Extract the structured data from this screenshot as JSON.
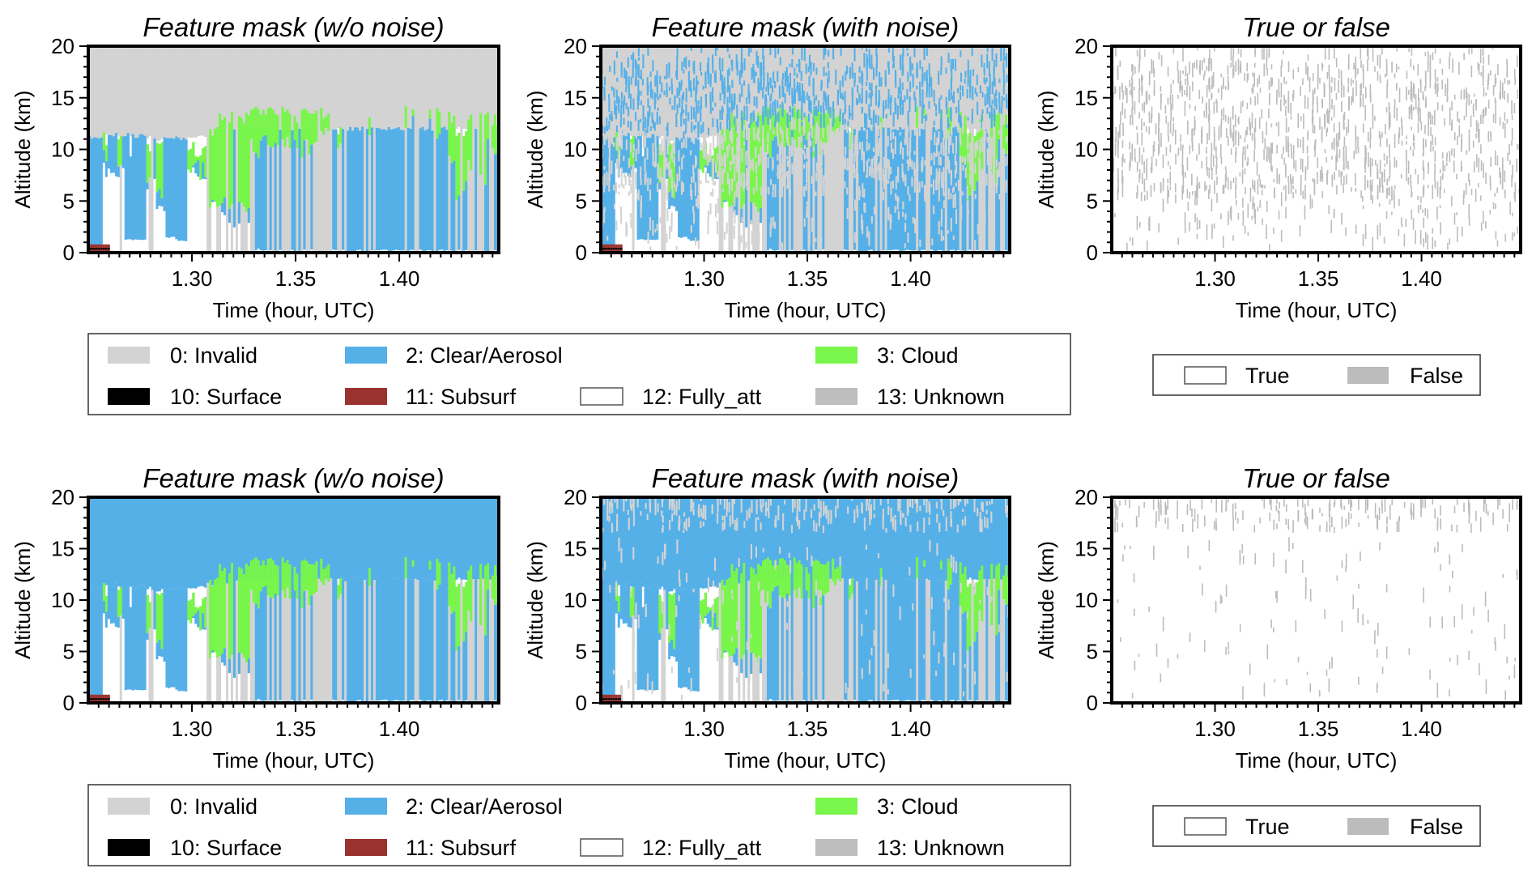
{
  "chart_data": {
    "type": "heatmap",
    "axes": {
      "xlabel": "Time (hour, UTC)",
      "ylabel": "Altitude (km)",
      "xlim": [
        1.25,
        1.448
      ],
      "ylim": [
        0,
        20
      ],
      "xticks": [
        1.3,
        1.35,
        1.4
      ],
      "xtick_labels": [
        "1.30",
        "1.35",
        "1.40"
      ],
      "yticks": [
        0,
        5,
        10,
        15,
        20
      ],
      "ytick_labels": [
        "0",
        "5",
        "10",
        "15",
        "20"
      ],
      "grid": false
    },
    "panels": [
      {
        "title": "Feature mask (w/o noise)",
        "row": 0,
        "col": 0,
        "kind": "mask",
        "above_valid_top": "invalid",
        "noise_fraction": 0
      },
      {
        "title": "Feature mask (with noise)",
        "row": 0,
        "col": 1,
        "kind": "mask_noise",
        "above_valid_top": "invalid",
        "noise_fraction": 0.35
      },
      {
        "title": "True or false",
        "row": 0,
        "col": 2,
        "kind": "truefalse",
        "false_fraction": 0.25
      },
      {
        "title": "Feature mask (w/o noise)",
        "row": 1,
        "col": 0,
        "kind": "mask",
        "above_valid_top": "clear",
        "noise_fraction": 0
      },
      {
        "title": "Feature mask (with noise)",
        "row": 1,
        "col": 1,
        "kind": "mask_noise",
        "above_valid_top": "clear",
        "noise_fraction": 0.08
      },
      {
        "title": "True or false",
        "row": 1,
        "col": 2,
        "kind": "truefalse",
        "false_fraction": 0.06
      }
    ],
    "profile_columns": [
      "time_hour",
      "valid_top_km",
      "cloud_top_km",
      "cloud_base_km",
      "fully_attenuated_top_km",
      "invalid_column_prob",
      "cloud_prob"
    ],
    "profile": [
      [
        1.25,
        11.2,
        0,
        0,
        0.4,
        0,
        0
      ],
      [
        1.255,
        11.2,
        0,
        0,
        0.5,
        0,
        0.1
      ],
      [
        1.26,
        11.3,
        11,
        9,
        8,
        0.1,
        0.6
      ],
      [
        1.265,
        11.4,
        11,
        8,
        7.5,
        0.2,
        0.6
      ],
      [
        1.27,
        11.4,
        10,
        9,
        1.2,
        0,
        0.3
      ],
      [
        1.275,
        11.3,
        10,
        9,
        1.2,
        0,
        0.3
      ],
      [
        1.28,
        11.1,
        10,
        7,
        6.5,
        0.1,
        0.6
      ],
      [
        1.285,
        11.0,
        10,
        6,
        4,
        0.1,
        0.7
      ],
      [
        1.29,
        11.0,
        0,
        0,
        1.5,
        0,
        0.1
      ],
      [
        1.295,
        11.1,
        10,
        9.5,
        1.2,
        0,
        0.2
      ],
      [
        1.3,
        11.2,
        10,
        8.5,
        8.2,
        0,
        0.8
      ],
      [
        1.305,
        11.3,
        10,
        8,
        7.5,
        0.1,
        0.8
      ],
      [
        1.31,
        11.5,
        12,
        5,
        4.5,
        0.2,
        0.8
      ],
      [
        1.315,
        11.6,
        13,
        5,
        4,
        0.3,
        0.7
      ],
      [
        1.32,
        11.8,
        13,
        4,
        3,
        0.3,
        0.8
      ],
      [
        1.325,
        12,
        13,
        4,
        3,
        0.4,
        0.6
      ],
      [
        1.33,
        12,
        14,
        10,
        0.3,
        0.4,
        0.6
      ],
      [
        1.335,
        12,
        14,
        11,
        0.2,
        0.6,
        0.9
      ],
      [
        1.34,
        12,
        14,
        11,
        0.2,
        0.6,
        0.9
      ],
      [
        1.345,
        12,
        14,
        11,
        0.2,
        0.7,
        0.8
      ],
      [
        1.35,
        12,
        13,
        11,
        0.2,
        0.7,
        0.7
      ],
      [
        1.355,
        12,
        14,
        10,
        0.2,
        0.75,
        0.9
      ],
      [
        1.36,
        12,
        14,
        11,
        0.2,
        0.8,
        0.9
      ],
      [
        1.365,
        12,
        13,
        11.5,
        0.2,
        0.7,
        0.7
      ],
      [
        1.37,
        12,
        12,
        11,
        0.2,
        0.3,
        0.4
      ],
      [
        1.375,
        12,
        0,
        0,
        0.2,
        0.1,
        0.1
      ],
      [
        1.38,
        12,
        14,
        12,
        0.2,
        0.05,
        0.3
      ],
      [
        1.385,
        12,
        13.5,
        12,
        0.2,
        0.1,
        0.4
      ],
      [
        1.39,
        12,
        12.5,
        12,
        0.2,
        0.15,
        0.3
      ],
      [
        1.395,
        12,
        0,
        0,
        0.2,
        0.05,
        0
      ],
      [
        1.4,
        12,
        0,
        0,
        0.2,
        0.05,
        0
      ],
      [
        1.405,
        12,
        14,
        12.5,
        0.2,
        0.1,
        0.3
      ],
      [
        1.41,
        12,
        0,
        0,
        0.2,
        0.4,
        0.1
      ],
      [
        1.415,
        12,
        14,
        12,
        0.2,
        0.3,
        0.3
      ],
      [
        1.42,
        12,
        14,
        11,
        0.2,
        0.3,
        0.5
      ],
      [
        1.425,
        12,
        13,
        9,
        0.2,
        0.4,
        0.5
      ],
      [
        1.43,
        12,
        12,
        6,
        0.2,
        0.5,
        0.5
      ],
      [
        1.435,
        12,
        13,
        8,
        0.2,
        0.6,
        0.4
      ],
      [
        1.44,
        12,
        13,
        7,
        0.2,
        0.6,
        0.6
      ],
      [
        1.445,
        12,
        13,
        10,
        0.2,
        0.5,
        0.7
      ]
    ],
    "subsurface_until_time": 1.26,
    "legend_mask": [
      {
        "label": "0: Invalid",
        "color": "#d3d3d3"
      },
      {
        "label": "2: Clear/Aerosol",
        "color": "#56b0e8"
      },
      {
        "label": "3: Cloud",
        "color": "#79f54b"
      },
      {
        "label": "10: Surface",
        "color": "#000000"
      },
      {
        "label": "11: Subsurf",
        "color": "#9a3330"
      },
      {
        "label": "12: Fully_att",
        "color": "#ffffff"
      },
      {
        "label": "13: Unknown",
        "color": "#bebebe"
      }
    ],
    "legend_truefalse": [
      {
        "label": "True",
        "color": "#ffffff"
      },
      {
        "label": "False",
        "color": "#bcbcbc"
      }
    ]
  }
}
